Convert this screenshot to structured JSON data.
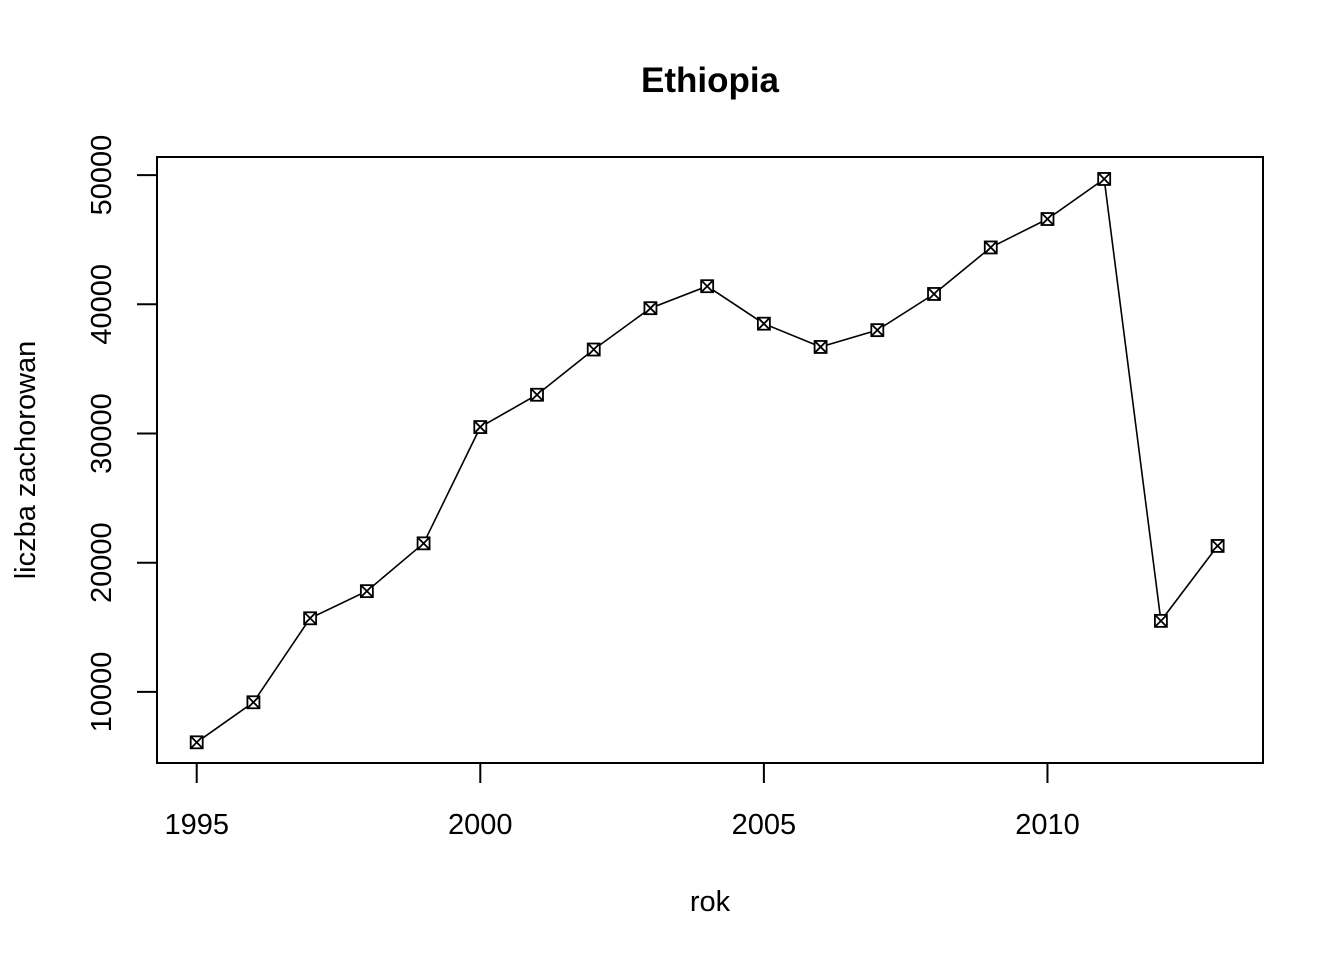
{
  "chart_data": {
    "type": "line",
    "title": "Ethiopia",
    "xlabel": "rok",
    "ylabel": "liczba zachorowan",
    "x": [
      1995,
      1996,
      1997,
      1998,
      1999,
      2000,
      2001,
      2002,
      2003,
      2004,
      2005,
      2006,
      2007,
      2008,
      2009,
      2010,
      2011,
      2012,
      2013
    ],
    "series": [
      {
        "values": [
          6100,
          9200,
          15700,
          17800,
          21500,
          30500,
          33000,
          36500,
          39700,
          41400,
          38500,
          36700,
          38000,
          40800,
          44400,
          46600,
          49700,
          15500,
          21300
        ]
      }
    ],
    "xlim": [
      1994.3,
      2013.8
    ],
    "ylim": [
      4500,
      51400
    ],
    "xticks": [
      1995,
      2000,
      2005,
      2010
    ],
    "yticks": [
      10000,
      20000,
      30000,
      40000,
      50000
    ],
    "xtick_labels": [
      "1995",
      "2000",
      "2005",
      "2010"
    ],
    "ytick_labels": [
      "10000",
      "20000",
      "30000",
      "40000",
      "50000"
    ],
    "marker": "boxed-x",
    "line_color": "#000000",
    "grid": false,
    "legend": "none"
  }
}
